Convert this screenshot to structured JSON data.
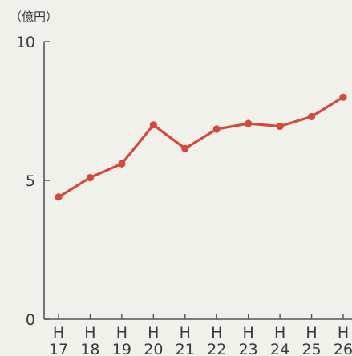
{
  "chart_data": {
    "type": "line",
    "unit_label": "（億円）",
    "categories": [
      {
        "era": "H",
        "year": "17"
      },
      {
        "era": "H",
        "year": "18"
      },
      {
        "era": "H",
        "year": "19"
      },
      {
        "era": "H",
        "year": "20"
      },
      {
        "era": "H",
        "year": "21"
      },
      {
        "era": "H",
        "year": "22"
      },
      {
        "era": "H",
        "year": "23"
      },
      {
        "era": "H",
        "year": "24"
      },
      {
        "era": "H",
        "year": "25"
      },
      {
        "era": "H",
        "year": "26"
      }
    ],
    "values": [
      4.4,
      5.1,
      5.6,
      7.0,
      6.15,
      6.85,
      7.05,
      6.95,
      7.3,
      8.0
    ],
    "ylim": [
      0,
      10
    ],
    "yticks": [
      "0",
      "5",
      "10"
    ],
    "grid": false,
    "colors": {
      "line": "#d44a3a",
      "axis": "#555555",
      "background": "#f1f1ec"
    }
  }
}
